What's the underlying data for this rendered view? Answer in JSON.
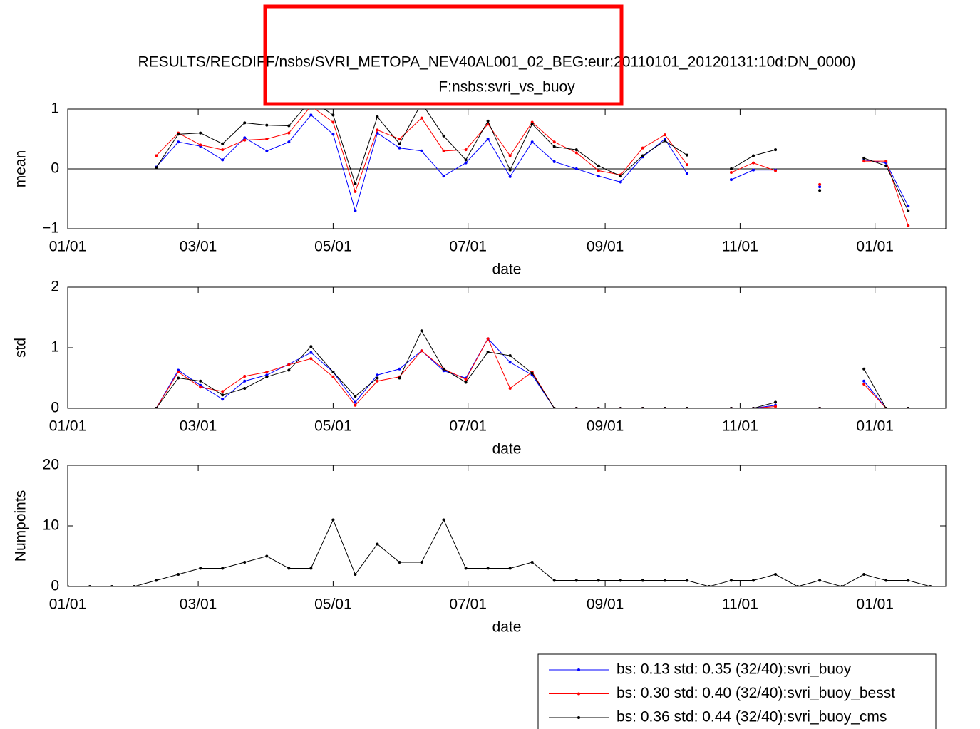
{
  "chart_data": [
    {
      "type": "line",
      "title": [
        "RESULTS/RECDIFF/nsbs/SVRI_METOPA_NEV40AL001_02_BEG:eur:20110101_20120131:10d:DN_0000)",
        "F:nsbs:svri_vs_buoy"
      ],
      "xlabel": "date",
      "ylabel": "mean",
      "x": [
        0,
        10,
        20,
        30,
        40,
        50,
        60,
        70,
        80,
        90,
        100,
        110,
        120,
        130,
        140,
        150,
        160,
        170,
        180,
        190,
        200,
        210,
        220,
        230,
        240,
        250,
        260,
        270,
        280,
        290,
        300,
        310,
        320,
        330,
        340,
        350,
        360,
        370,
        380,
        390
      ],
      "xlim": [
        0,
        397
      ],
      "xticks": [
        {
          "value": 0,
          "label": "01/01"
        },
        {
          "value": 59,
          "label": "03/01"
        },
        {
          "value": 120,
          "label": "05/01"
        },
        {
          "value": 181,
          "label": "07/01"
        },
        {
          "value": 243,
          "label": "09/01"
        },
        {
          "value": 304,
          "label": "11/01"
        },
        {
          "value": 365,
          "label": "01/01"
        }
      ],
      "ylim": [
        -1,
        1
      ],
      "yticks": [
        {
          "value": -1,
          "label": "−1"
        },
        0,
        1
      ],
      "zero_line": true,
      "legend": "lower right outside",
      "series": [
        {
          "name": "bs: 0.13 std: 0.35 (32/40):svri_buoy",
          "color": "#0000ff",
          "values": [
            null,
            null,
            null,
            null,
            0.03,
            0.45,
            0.38,
            0.15,
            0.52,
            0.3,
            0.45,
            0.9,
            0.58,
            -0.7,
            0.6,
            0.35,
            0.3,
            -0.12,
            0.1,
            0.5,
            -0.13,
            0.45,
            0.12,
            0,
            -0.12,
            -0.22,
            0.2,
            0.5,
            -0.08,
            null,
            -0.18,
            -0.02,
            -0.02,
            null,
            -0.3,
            null,
            0.15,
            0.1,
            -0.62,
            null
          ]
        },
        {
          "name": "bs: 0.30 std: 0.40 (32/40):svri_buoy_besst",
          "color": "#ff0000",
          "values": [
            null,
            null,
            null,
            null,
            0.22,
            0.6,
            0.4,
            0.32,
            0.48,
            0.5,
            0.6,
            1.05,
            0.78,
            -0.38,
            0.65,
            0.5,
            0.85,
            0.3,
            0.32,
            0.75,
            0.22,
            0.78,
            0.45,
            0.27,
            -0.03,
            -0.1,
            0.35,
            0.57,
            0.07,
            null,
            -0.06,
            0.1,
            -0.03,
            null,
            -0.26,
            null,
            0.13,
            0.13,
            -0.95,
            null
          ]
        },
        {
          "name": "bs: 0.36 std: 0.44 (32/40):svri_buoy_cms",
          "color": "#000000",
          "values": [
            null,
            null,
            null,
            null,
            0.02,
            0.58,
            0.6,
            0.42,
            0.77,
            0.73,
            0.72,
            1.15,
            0.9,
            -0.25,
            0.87,
            0.42,
            1.1,
            0.55,
            0.15,
            0.8,
            -0.02,
            0.75,
            0.37,
            0.32,
            0.05,
            -0.12,
            0.22,
            0.47,
            0.23,
            null,
            0,
            0.22,
            0.32,
            null,
            -0.36,
            null,
            0.18,
            0.05,
            -0.7,
            null
          ]
        }
      ]
    },
    {
      "type": "line",
      "xlabel": "date",
      "ylabel": "std",
      "x": [
        0,
        10,
        20,
        30,
        40,
        50,
        60,
        70,
        80,
        90,
        100,
        110,
        120,
        130,
        140,
        150,
        160,
        170,
        180,
        190,
        200,
        210,
        220,
        230,
        240,
        250,
        260,
        270,
        280,
        290,
        300,
        310,
        320,
        330,
        340,
        350,
        360,
        370,
        380,
        390
      ],
      "xlim": [
        0,
        397
      ],
      "xticks": [
        {
          "value": 0,
          "label": "01/01"
        },
        {
          "value": 59,
          "label": "03/01"
        },
        {
          "value": 120,
          "label": "05/01"
        },
        {
          "value": 181,
          "label": "07/01"
        },
        {
          "value": 243,
          "label": "09/01"
        },
        {
          "value": 304,
          "label": "11/01"
        },
        {
          "value": 365,
          "label": "01/01"
        }
      ],
      "ylim": [
        0,
        2
      ],
      "yticks": [
        0,
        1,
        2
      ],
      "series": [
        {
          "color": "#0000ff",
          "values": [
            null,
            null,
            null,
            null,
            0,
            0.63,
            0.38,
            0.15,
            0.45,
            0.55,
            0.73,
            0.92,
            0.6,
            0.1,
            0.55,
            0.65,
            0.95,
            0.62,
            0.5,
            1.15,
            0.76,
            0.55,
            0,
            0,
            0,
            0,
            0,
            0,
            0,
            null,
            0,
            0,
            0.05,
            null,
            0,
            null,
            0.45,
            0,
            0,
            null
          ]
        },
        {
          "color": "#ff0000",
          "values": [
            null,
            null,
            null,
            null,
            0,
            0.6,
            0.35,
            0.28,
            0.53,
            0.6,
            0.72,
            0.82,
            0.52,
            0.05,
            0.45,
            0.52,
            0.95,
            0.65,
            0.48,
            1.15,
            0.33,
            0.6,
            0,
            0,
            0,
            0,
            0,
            0,
            0,
            null,
            0,
            0,
            0.03,
            null,
            0,
            null,
            0.4,
            0,
            0,
            null
          ]
        },
        {
          "color": "#000000",
          "values": [
            null,
            null,
            null,
            null,
            0,
            0.5,
            0.45,
            0.22,
            0.33,
            0.52,
            0.63,
            1.02,
            0.6,
            0.2,
            0.5,
            0.5,
            1.28,
            0.65,
            0.43,
            0.93,
            0.87,
            0.58,
            0,
            0,
            0,
            0,
            0,
            0,
            0,
            null,
            0,
            0,
            0.1,
            null,
            0,
            null,
            0.65,
            0,
            0,
            null
          ]
        }
      ]
    },
    {
      "type": "line",
      "xlabel": "date",
      "ylabel": "Numpoints",
      "x": [
        0,
        10,
        20,
        30,
        40,
        50,
        60,
        70,
        80,
        90,
        100,
        110,
        120,
        130,
        140,
        150,
        160,
        170,
        180,
        190,
        200,
        210,
        220,
        230,
        240,
        250,
        260,
        270,
        280,
        290,
        300,
        310,
        320,
        330,
        340,
        350,
        360,
        370,
        380,
        390
      ],
      "xlim": [
        0,
        397
      ],
      "xticks": [
        {
          "value": 0,
          "label": "01/01"
        },
        {
          "value": 59,
          "label": "03/01"
        },
        {
          "value": 120,
          "label": "05/01"
        },
        {
          "value": 181,
          "label": "07/01"
        },
        {
          "value": 243,
          "label": "09/01"
        },
        {
          "value": 304,
          "label": "11/01"
        },
        {
          "value": 365,
          "label": "01/01"
        }
      ],
      "ylim": [
        0,
        20
      ],
      "yticks": [
        0,
        10,
        20
      ],
      "series": [
        {
          "color": "#000000",
          "values": [
            0,
            0,
            0,
            0,
            1,
            2,
            3,
            3,
            4,
            5,
            3,
            3,
            11,
            2,
            7,
            4,
            4,
            11,
            3,
            3,
            3,
            4,
            1,
            1,
            1,
            1,
            1,
            1,
            1,
            0,
            1,
            1,
            2,
            0,
            1,
            0,
            2,
            1,
            1,
            0
          ]
        }
      ]
    }
  ]
}
